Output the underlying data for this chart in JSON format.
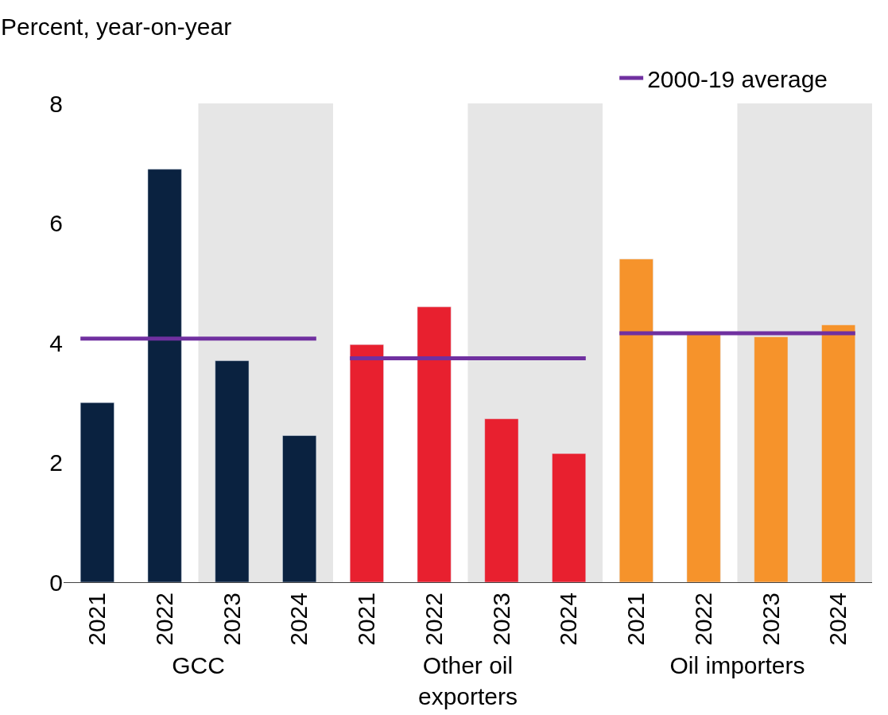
{
  "chart_data": [
    {
      "type": "bar",
      "ylabel": "Percent, year-on-year",
      "xlabel": "GCC",
      "categories": [
        "2021",
        "2022",
        "2023",
        "2024"
      ],
      "values": [
        3.0,
        6.9,
        3.7,
        2.45
      ],
      "color": "#0a2240",
      "ylim": [
        0,
        8
      ],
      "yticks": [
        0,
        2,
        4,
        6,
        8
      ],
      "grid": false,
      "legend": "top",
      "ref_lines": [
        {
          "axis": "y",
          "value": 4.07,
          "label": "2000-19 average",
          "color": "#7030a0"
        }
      ],
      "bands": [
        {
          "axis": "x",
          "from": "2023",
          "to": "2024",
          "color": "#e6e6e6"
        }
      ]
    },
    {
      "type": "bar",
      "xlabel": "Other oil\nexporters",
      "categories": [
        "2021",
        "2022",
        "2023",
        "2024"
      ],
      "values": [
        3.97,
        4.6,
        2.73,
        2.15
      ],
      "color": "#e8202f",
      "ylim": [
        0,
        8
      ],
      "yticks": [
        0,
        2,
        4,
        6,
        8
      ],
      "grid": false,
      "tick_labels": "x",
      "ref_lines": [
        {
          "axis": "y",
          "value": 3.74,
          "color": "#7030a0"
        }
      ],
      "bands": [
        {
          "axis": "x",
          "from": "2023",
          "to": "2024",
          "color": "#e6e6e6"
        }
      ]
    },
    {
      "type": "bar",
      "xlabel": "Oil importers",
      "categories": [
        "2021",
        "2022",
        "2023",
        "2024"
      ],
      "values": [
        5.4,
        4.15,
        4.1,
        4.3
      ],
      "color": "#f6932b",
      "ylim": [
        0,
        8
      ],
      "yticks": [
        0,
        2,
        4,
        6,
        8
      ],
      "grid": false,
      "tick_labels": "x",
      "ref_lines": [
        {
          "axis": "y",
          "value": 4.16,
          "color": "#7030a0"
        }
      ],
      "bands": [
        {
          "axis": "x",
          "from": "2023",
          "to": "2024",
          "color": "#e6e6e6"
        }
      ]
    }
  ]
}
